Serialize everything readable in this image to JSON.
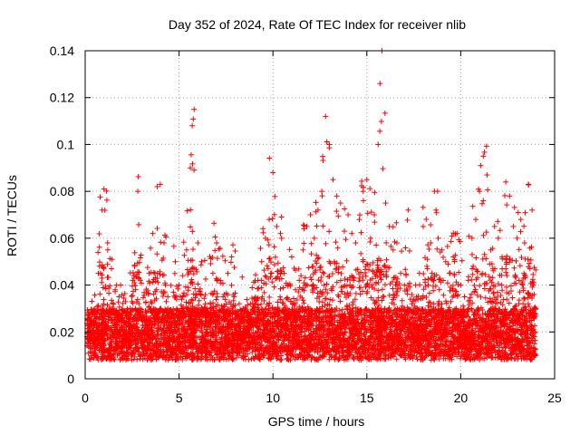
{
  "chart_data": {
    "type": "scatter",
    "title": "Day 352 of 2024, Rate Of TEC Index for receiver nlib",
    "xlabel": "GPS time / hours",
    "ylabel": "ROTI / TECUs",
    "xlim": [
      0,
      25
    ],
    "ylim": [
      0,
      0.14
    ],
    "xticks": [
      "0",
      "5",
      "10",
      "15",
      "20",
      "25"
    ],
    "yticks": [
      "0",
      "0.02",
      "0.04",
      "0.06",
      "0.08",
      "0.1",
      "0.12",
      "0.14"
    ],
    "grid": true,
    "marker": "plus",
    "colors": {
      "series": "#ff0000",
      "grid": "#a0a0a0",
      "frame": "#000000"
    },
    "series": [
      {
        "x": [
          0.1,
          0.3,
          0.5,
          0.7,
          0.9,
          1.0,
          1.2,
          1.4,
          1.6,
          1.8,
          2.0,
          2.2,
          2.4,
          2.6,
          2.8,
          3.0,
          3.2,
          3.4,
          3.6,
          3.8,
          4.0,
          4.2,
          4.4,
          4.6,
          4.8,
          5.0,
          5.2,
          5.4,
          5.6,
          5.7,
          5.8,
          6.0,
          6.2,
          6.4,
          6.6,
          6.8,
          7.0,
          7.2,
          7.4,
          7.6,
          7.8,
          8.0,
          8.2,
          8.4,
          8.6,
          8.8,
          9.0,
          9.2,
          9.4,
          9.6,
          9.8,
          10.0,
          10.2,
          10.4,
          10.6,
          10.8,
          11.0,
          11.2,
          11.4,
          11.6,
          11.8,
          12.0,
          12.2,
          12.4,
          12.6,
          12.8,
          13.0,
          13.2,
          13.4,
          13.6,
          13.8,
          14.0,
          14.2,
          14.4,
          14.6,
          14.8,
          15.0,
          15.2,
          15.4,
          15.6,
          15.7,
          15.8,
          16.0,
          16.2,
          16.4,
          16.6,
          16.8,
          17.0,
          17.2,
          17.4,
          17.6,
          17.8,
          18.0,
          18.2,
          18.4,
          18.6,
          18.8,
          19.0,
          19.2,
          19.4,
          19.6,
          19.8,
          20.0,
          20.2,
          20.4,
          20.6,
          20.8,
          21.0,
          21.2,
          21.4,
          21.6,
          21.8,
          22.0,
          22.2,
          22.4,
          22.6,
          22.8,
          23.0,
          23.2,
          23.4,
          23.6,
          23.8,
          24.0
        ],
        "y": [
          0.018,
          0.024,
          0.028,
          0.045,
          0.072,
          0.081,
          0.055,
          0.047,
          0.038,
          0.035,
          0.026,
          0.022,
          0.03,
          0.043,
          0.08,
          0.02,
          0.025,
          0.045,
          0.062,
          0.038,
          0.083,
          0.058,
          0.03,
          0.022,
          0.05,
          0.04,
          0.035,
          0.055,
          0.09,
          0.108,
          0.115,
          0.058,
          0.05,
          0.032,
          0.028,
          0.045,
          0.058,
          0.042,
          0.036,
          0.045,
          0.052,
          0.02,
          0.032,
          0.03,
          0.028,
          0.032,
          0.034,
          0.042,
          0.05,
          0.06,
          0.068,
          0.088,
          0.065,
          0.062,
          0.045,
          0.04,
          0.052,
          0.038,
          0.042,
          0.055,
          0.065,
          0.07,
          0.06,
          0.072,
          0.08,
          0.112,
          0.1,
          0.085,
          0.078,
          0.075,
          0.063,
          0.07,
          0.062,
          0.058,
          0.068,
          0.08,
          0.085,
          0.06,
          0.07,
          0.1,
          0.126,
          0.14,
          0.075,
          0.065,
          0.055,
          0.058,
          0.045,
          0.04,
          0.072,
          0.032,
          0.04,
          0.045,
          0.065,
          0.048,
          0.058,
          0.08,
          0.06,
          0.055,
          0.05,
          0.045,
          0.052,
          0.062,
          0.04,
          0.035,
          0.042,
          0.06,
          0.068,
          0.08,
          0.095,
          0.087,
          0.055,
          0.065,
          0.06,
          0.052,
          0.084,
          0.078,
          0.065,
          0.06,
          0.068,
          0.058,
          0.083,
          0.072,
          0.03
        ]
      }
    ]
  }
}
